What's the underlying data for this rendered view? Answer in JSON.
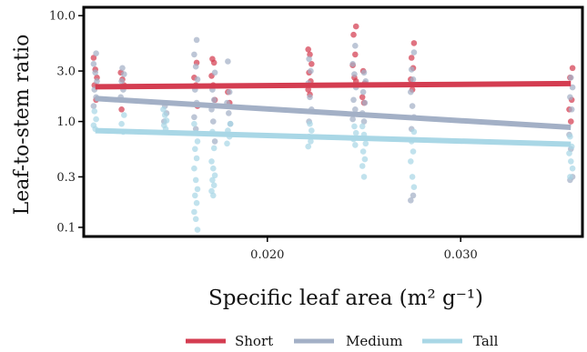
{
  "chart_data": {
    "type": "scatter",
    "xlabel": "Specific leaf area (m² g⁻¹)",
    "ylabel": "Leaf-to-stem ratio",
    "xlim": [
      0.0105,
      0.0363
    ],
    "ylim": [
      0.082,
      12.0
    ],
    "y_scale": "log",
    "grid": false,
    "legend_position": "bottom",
    "x_ticks": [
      {
        "value": 0.02,
        "label": "0.020"
      },
      {
        "value": 0.03,
        "label": "0.030"
      }
    ],
    "y_ticks": [
      {
        "value": 0.1,
        "label": "0.1"
      },
      {
        "value": 0.3,
        "label": "0.3"
      },
      {
        "value": 1.0,
        "label": "1.0"
      },
      {
        "value": 3.0,
        "label": "3.0"
      },
      {
        "value": 10.0,
        "label": "10.0"
      }
    ],
    "series": [
      {
        "name": "Short",
        "color": "#d43d51",
        "trend": [
          [
            0.0111,
            2.13
          ],
          [
            0.0357,
            2.28
          ]
        ],
        "points": [
          [
            0.0111,
            4.0
          ],
          [
            0.0111,
            3.1
          ],
          [
            0.0111,
            2.6
          ],
          [
            0.0111,
            2.2
          ],
          [
            0.0111,
            1.6
          ],
          [
            0.0125,
            2.9
          ],
          [
            0.0125,
            2.5
          ],
          [
            0.0125,
            2.2
          ],
          [
            0.0125,
            1.3
          ],
          [
            0.0163,
            3.6
          ],
          [
            0.0163,
            2.6
          ],
          [
            0.0163,
            2.2
          ],
          [
            0.0163,
            1.4
          ],
          [
            0.0172,
            3.9
          ],
          [
            0.0172,
            3.6
          ],
          [
            0.0172,
            2.7
          ],
          [
            0.0172,
            2.2
          ],
          [
            0.0172,
            1.6
          ],
          [
            0.018,
            1.9
          ],
          [
            0.018,
            1.5
          ],
          [
            0.0222,
            4.8
          ],
          [
            0.0222,
            4.3
          ],
          [
            0.0222,
            3.5
          ],
          [
            0.0222,
            2.9
          ],
          [
            0.0222,
            2.4
          ],
          [
            0.0222,
            2.0
          ],
          [
            0.0222,
            1.8
          ],
          [
            0.0245,
            7.9
          ],
          [
            0.0245,
            6.6
          ],
          [
            0.0245,
            4.3
          ],
          [
            0.0245,
            3.4
          ],
          [
            0.0245,
            2.6
          ],
          [
            0.0245,
            2.4
          ],
          [
            0.025,
            3.0
          ],
          [
            0.025,
            2.3
          ],
          [
            0.025,
            1.7
          ],
          [
            0.025,
            1.5
          ],
          [
            0.0275,
            5.5
          ],
          [
            0.0275,
            4.0
          ],
          [
            0.0275,
            3.2
          ],
          [
            0.0275,
            2.5
          ],
          [
            0.0275,
            2.0
          ],
          [
            0.0357,
            3.2
          ],
          [
            0.0357,
            2.6
          ],
          [
            0.0357,
            1.6
          ],
          [
            0.0357,
            1.3
          ],
          [
            0.0357,
            1.0
          ]
        ]
      },
      {
        "name": "Medium",
        "color": "#a3b0c6",
        "trend": [
          [
            0.0111,
            1.65
          ],
          [
            0.0357,
            0.88
          ]
        ],
        "points": [
          [
            0.0111,
            4.4
          ],
          [
            0.0111,
            3.5
          ],
          [
            0.0111,
            2.9
          ],
          [
            0.0111,
            2.4
          ],
          [
            0.0111,
            2.0
          ],
          [
            0.0111,
            1.7
          ],
          [
            0.0111,
            1.4
          ],
          [
            0.0125,
            3.2
          ],
          [
            0.0125,
            2.8
          ],
          [
            0.0125,
            2.4
          ],
          [
            0.0125,
            2.0
          ],
          [
            0.0125,
            1.7
          ],
          [
            0.0147,
            1.4
          ],
          [
            0.0147,
            1.2
          ],
          [
            0.0147,
            1.0
          ],
          [
            0.0163,
            5.9
          ],
          [
            0.0163,
            4.3
          ],
          [
            0.0163,
            3.3
          ],
          [
            0.0163,
            2.5
          ],
          [
            0.0163,
            2.0
          ],
          [
            0.0163,
            1.5
          ],
          [
            0.0163,
            1.1
          ],
          [
            0.0163,
            0.85
          ],
          [
            0.0172,
            2.9
          ],
          [
            0.0172,
            2.0
          ],
          [
            0.0172,
            1.6
          ],
          [
            0.0172,
            1.3
          ],
          [
            0.0172,
            1.0
          ],
          [
            0.0172,
            0.65
          ],
          [
            0.018,
            3.7
          ],
          [
            0.018,
            1.9
          ],
          [
            0.018,
            1.5
          ],
          [
            0.018,
            1.2
          ],
          [
            0.018,
            0.95
          ],
          [
            0.0222,
            3.9
          ],
          [
            0.0222,
            3.0
          ],
          [
            0.0222,
            2.3
          ],
          [
            0.0222,
            1.7
          ],
          [
            0.0222,
            1.3
          ],
          [
            0.0222,
            1.0
          ],
          [
            0.0245,
            5.2
          ],
          [
            0.0245,
            3.5
          ],
          [
            0.0245,
            2.8
          ],
          [
            0.0245,
            2.1
          ],
          [
            0.0245,
            1.6
          ],
          [
            0.0245,
            1.3
          ],
          [
            0.0245,
            1.05
          ],
          [
            0.025,
            2.9
          ],
          [
            0.025,
            2.4
          ],
          [
            0.025,
            1.9
          ],
          [
            0.025,
            1.5
          ],
          [
            0.025,
            1.2
          ],
          [
            0.025,
            1.0
          ],
          [
            0.0275,
            4.5
          ],
          [
            0.0275,
            3.1
          ],
          [
            0.0275,
            2.5
          ],
          [
            0.0275,
            1.9
          ],
          [
            0.0275,
            1.4
          ],
          [
            0.0275,
            1.1
          ],
          [
            0.0275,
            0.85
          ],
          [
            0.0275,
            0.2
          ],
          [
            0.0275,
            0.18
          ],
          [
            0.0357,
            2.6
          ],
          [
            0.0357,
            2.1
          ],
          [
            0.0357,
            1.7
          ],
          [
            0.0357,
            1.3
          ],
          [
            0.0357,
            0.75
          ],
          [
            0.0357,
            0.55
          ],
          [
            0.0357,
            0.3
          ],
          [
            0.0357,
            0.28
          ]
        ]
      },
      {
        "name": "Tall",
        "color": "#a9d7e6",
        "trend": [
          [
            0.0111,
            0.82
          ],
          [
            0.0357,
            0.61
          ]
        ],
        "points": [
          [
            0.0111,
            1.25
          ],
          [
            0.0111,
            1.05
          ],
          [
            0.0111,
            0.92
          ],
          [
            0.0111,
            0.85
          ],
          [
            0.0125,
            1.15
          ],
          [
            0.0125,
            0.95
          ],
          [
            0.0125,
            0.8
          ],
          [
            0.0147,
            1.3
          ],
          [
            0.0147,
            1.15
          ],
          [
            0.0147,
            1.02
          ],
          [
            0.0147,
            0.92
          ],
          [
            0.0147,
            0.85
          ],
          [
            0.0163,
            0.95
          ],
          [
            0.0163,
            0.78
          ],
          [
            0.0163,
            0.65
          ],
          [
            0.0163,
            0.55
          ],
          [
            0.0163,
            0.45
          ],
          [
            0.0163,
            0.36
          ],
          [
            0.0163,
            0.28
          ],
          [
            0.0163,
            0.23
          ],
          [
            0.0163,
            0.2
          ],
          [
            0.0163,
            0.17
          ],
          [
            0.0163,
            0.14
          ],
          [
            0.0163,
            0.12
          ],
          [
            0.0163,
            0.095
          ],
          [
            0.0172,
            0.8
          ],
          [
            0.0172,
            0.56
          ],
          [
            0.0172,
            0.42
          ],
          [
            0.0172,
            0.36
          ],
          [
            0.0172,
            0.31
          ],
          [
            0.0172,
            0.28
          ],
          [
            0.0172,
            0.25
          ],
          [
            0.0172,
            0.22
          ],
          [
            0.0172,
            0.2
          ],
          [
            0.018,
            0.95
          ],
          [
            0.018,
            0.82
          ],
          [
            0.018,
            0.72
          ],
          [
            0.018,
            0.62
          ],
          [
            0.0222,
            0.95
          ],
          [
            0.0222,
            0.82
          ],
          [
            0.0222,
            0.72
          ],
          [
            0.0222,
            0.65
          ],
          [
            0.0222,
            0.58
          ],
          [
            0.0245,
            0.9
          ],
          [
            0.0245,
            0.78
          ],
          [
            0.0245,
            0.68
          ],
          [
            0.0245,
            0.6
          ],
          [
            0.025,
            0.9
          ],
          [
            0.025,
            0.75
          ],
          [
            0.025,
            0.62
          ],
          [
            0.025,
            0.52
          ],
          [
            0.025,
            0.44
          ],
          [
            0.025,
            0.38
          ],
          [
            0.025,
            0.3
          ],
          [
            0.0275,
            0.8
          ],
          [
            0.0275,
            0.65
          ],
          [
            0.0275,
            0.52
          ],
          [
            0.0275,
            0.42
          ],
          [
            0.0275,
            0.3
          ],
          [
            0.0275,
            0.24
          ],
          [
            0.0357,
            0.72
          ],
          [
            0.0357,
            0.58
          ],
          [
            0.0357,
            0.5
          ],
          [
            0.0357,
            0.42
          ],
          [
            0.0357,
            0.36
          ],
          [
            0.0357,
            0.3
          ]
        ]
      }
    ]
  }
}
